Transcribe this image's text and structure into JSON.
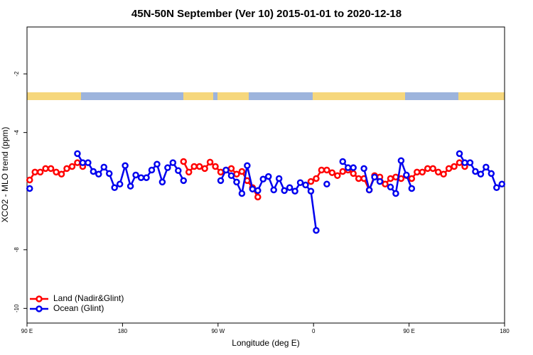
{
  "chart_data": {
    "type": "line",
    "title": "45N-50N September (Ver 10)   2015-01-01 to 2020-12-18",
    "x_label": "Longitude (deg E)",
    "y_label": "XCO2 - MLO trend (ppm)",
    "xlim": [
      90,
      540
    ],
    "xticks": [
      {
        "value": 90,
        "label": "90 E"
      },
      {
        "value": 180,
        "label": "180"
      },
      {
        "value": 270,
        "label": "90 W"
      },
      {
        "value": 360,
        "label": "0"
      },
      {
        "value": 450,
        "label": "90 E"
      },
      {
        "value": 540,
        "label": "180"
      }
    ],
    "ylim": [
      -10.5,
      -0.4
    ],
    "yticks": [
      -2,
      -4,
      -8,
      -10
    ],
    "legend": "bottom-left",
    "x": [
      92.5,
      97.5,
      102.5,
      107.5,
      112.5,
      117.5,
      122.5,
      127.5,
      132.5,
      137.5,
      142.5,
      147.5,
      152.5,
      157.5,
      162.5,
      167.5,
      172.5,
      177.5,
      182.5,
      187.5,
      192.5,
      197.5,
      202.5,
      207.5,
      212.5,
      217.5,
      222.5,
      227.5,
      232.5,
      237.5,
      242.5,
      247.5,
      252.5,
      257.5,
      262.5,
      267.5,
      272.5,
      277.5,
      282.5,
      287.5,
      292.5,
      297.5,
      302.5,
      307.5,
      312.5,
      317.5,
      322.5,
      327.5,
      332.5,
      337.5,
      342.5,
      347.5,
      352.5,
      357.5,
      362.5,
      367.5,
      372.5,
      377.5,
      382.5,
      387.5,
      392.5,
      397.5,
      402.5,
      407.5,
      412.5,
      417.5,
      422.5,
      427.5,
      432.5,
      437.5,
      442.5,
      447.5,
      452.5,
      457.5,
      462.5,
      467.5,
      472.5,
      477.5,
      482.5,
      487.5,
      492.5,
      497.5,
      502.5,
      507.5,
      512.5,
      517.5,
      522.5,
      527.5,
      532.5,
      537.5
    ],
    "series": [
      {
        "name": "Land (Nadir&Glint)",
        "color": "#ff0000",
        "values": [
          -5.62,
          -5.35,
          -5.35,
          -5.23,
          -5.23,
          -5.35,
          -5.42,
          -5.23,
          -5.16,
          -5.03,
          -5.16,
          null,
          null,
          null,
          null,
          null,
          null,
          null,
          null,
          null,
          null,
          null,
          null,
          null,
          null,
          null,
          null,
          null,
          null,
          -4.99,
          -5.35,
          -5.16,
          -5.16,
          -5.23,
          -5.01,
          -5.16,
          -5.35,
          -5.28,
          -5.23,
          -5.42,
          -5.33,
          -5.64,
          -5.88,
          -6.2,
          null,
          null,
          null,
          null,
          null,
          null,
          null,
          null,
          null,
          -5.67,
          -5.57,
          -5.28,
          -5.28,
          -5.37,
          -5.47,
          -5.33,
          -5.28,
          -5.4,
          -5.57,
          -5.57,
          -5.96,
          -5.47,
          -5.52,
          -5.76,
          -5.57,
          -5.52,
          -5.57,
          -5.47,
          -5.57,
          -5.35,
          -5.35,
          -5.23,
          -5.23,
          -5.35,
          -5.42,
          -5.23,
          -5.16,
          -5.03,
          -5.16,
          null,
          null,
          null,
          null,
          null,
          null,
          null
        ]
      },
      {
        "name": "Ocean (Glint)",
        "color": "#0000ee",
        "values": [
          -5.91,
          null,
          null,
          null,
          null,
          null,
          null,
          null,
          null,
          -4.72,
          -5.03,
          -5.03,
          -5.33,
          -5.42,
          -5.18,
          -5.4,
          -5.88,
          -5.76,
          -5.13,
          -5.83,
          -5.45,
          -5.54,
          -5.54,
          -5.28,
          -5.08,
          -5.69,
          -5.2,
          -5.03,
          -5.3,
          -5.64,
          null,
          null,
          null,
          null,
          null,
          null,
          -5.64,
          -5.28,
          -5.47,
          -5.69,
          -6.08,
          -5.13,
          -5.93,
          -5.98,
          -5.59,
          -5.5,
          -5.96,
          -5.57,
          -5.98,
          -5.88,
          -6.0,
          -5.71,
          -5.79,
          -6.0,
          -7.34,
          null,
          -5.76,
          null,
          null,
          -4.99,
          -5.2,
          -5.2,
          null,
          -5.23,
          -5.96,
          -5.52,
          -5.67,
          null,
          -5.86,
          -6.08,
          -4.96,
          -5.45,
          -5.91,
          null,
          null,
          null,
          null,
          null,
          null,
          null,
          null,
          -4.72,
          -5.03,
          -5.03,
          -5.33,
          -5.42,
          -5.18,
          -5.4,
          -5.88,
          -5.76
        ]
      }
    ]
  }
}
